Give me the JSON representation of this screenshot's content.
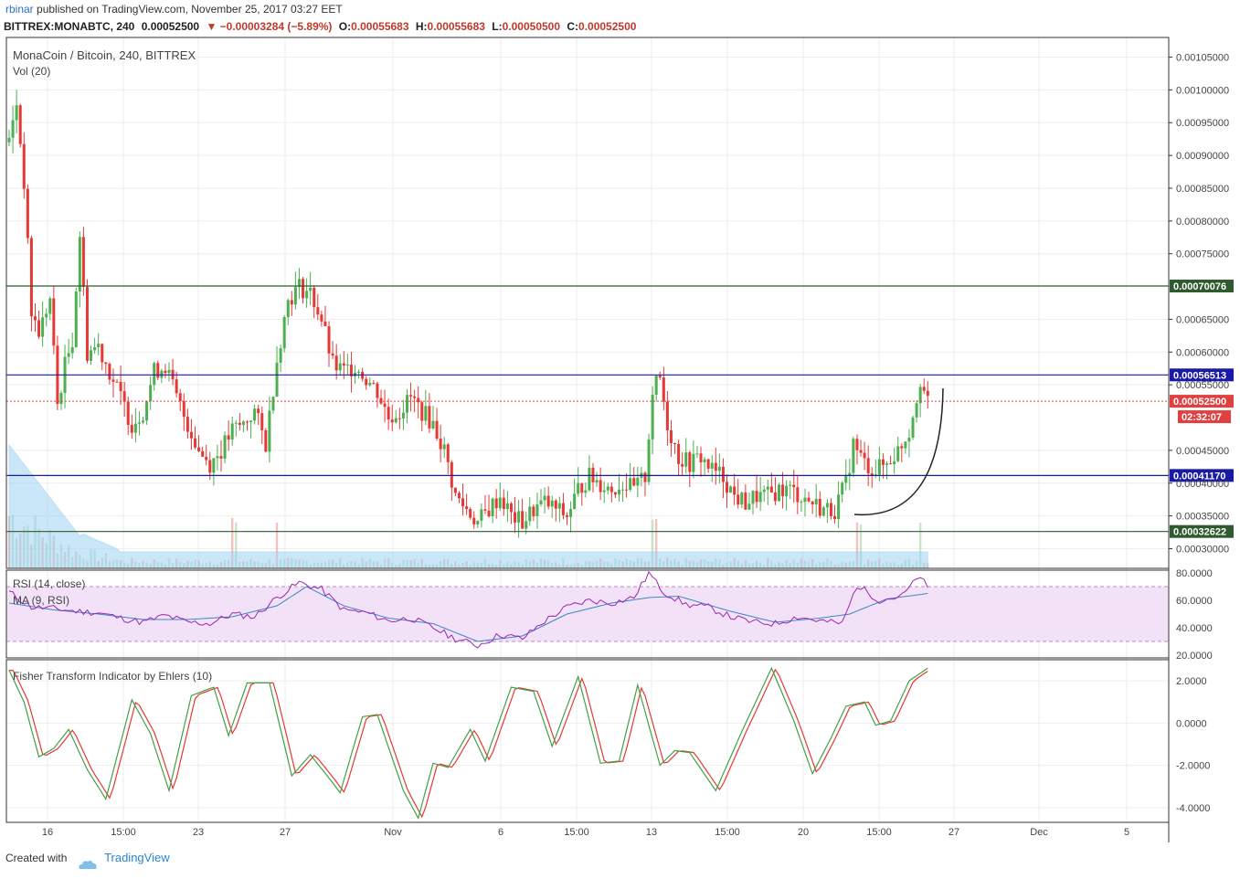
{
  "header": {
    "user": "rbinar",
    "published_text": "published on TradingView.com, November 25, 2017 03:27 EET",
    "symbol": "BITTREX:MONABTC, 240",
    "last": "0.00052500",
    "change": "▼ −0.00003284 (−5.89%)",
    "o_label": "O:",
    "o_value": "0.00055683",
    "h_label": "H:",
    "h_value": "0.00055683",
    "l_label": "L:",
    "l_value": "0.00050500",
    "c_label": "C:",
    "c_value": "0.00052500"
  },
  "main_pane": {
    "title": "MonaCoin / Bitcoin, 240, BITTREX",
    "vol_label": "Vol (20)"
  },
  "rsi_pane": {
    "title": "RSI (14, close)",
    "ma_label": "MA (9, RSI)"
  },
  "fisher_pane": {
    "title": "Fisher Transform Indicator by Ehlers (10)"
  },
  "footer": {
    "created": "Created with",
    "brand": "TradingView"
  },
  "colors": {
    "up": "#4caf50",
    "down": "#e53935",
    "blue_line": "#1a1aa8",
    "green_line": "#2e5a2e",
    "price_tag": "#e04040",
    "rsi_fill": "#f3e2f7",
    "rsi_line": "#9c27b0",
    "ma_line": "#3a87c8",
    "vol_area": "#9fd3f5"
  },
  "chart_data": {
    "type": "candlestick",
    "x_ticks": [
      "16",
      "15:00",
      "23",
      "27",
      "Nov",
      "6",
      "15:00",
      "13",
      "15:00",
      "20",
      "15:00",
      "27",
      "Dec",
      "5"
    ],
    "price_axis": {
      "ticks": [
        "0.00105000",
        "0.00100000",
        "0.00095000",
        "0.00090000",
        "0.00085000",
        "0.00080000",
        "0.00075000",
        "0.00065000",
        "0.00060000",
        "0.00055000",
        "0.00045000",
        "0.00040000",
        "0.00035000",
        "0.00030000"
      ],
      "range": [
        0.00027,
        0.00108
      ]
    },
    "levels": [
      {
        "value": 0.00070076,
        "label": "0.00070076",
        "color": "#2e5a2e"
      },
      {
        "value": 0.00056513,
        "label": "0.00056513",
        "color": "#1a1aa8"
      },
      {
        "value": 0.0004117,
        "label": "0.00041170",
        "color": "#1a1aa8"
      },
      {
        "value": 0.00032622,
        "label": "0.00032622",
        "color": "#2e5a2e"
      }
    ],
    "last_price": {
      "value": 0.000525,
      "label": "0.00052500",
      "countdown": "02:32:07"
    },
    "price_path": [
      [
        0,
        0.00092
      ],
      [
        2,
        0.00098
      ],
      [
        4,
        0.00086
      ],
      [
        6,
        0.00066
      ],
      [
        8,
        0.00063
      ],
      [
        11,
        0.00068
      ],
      [
        13,
        0.00052
      ],
      [
        15,
        0.00058
      ],
      [
        17,
        0.00062
      ],
      [
        19,
        0.00078
      ],
      [
        21,
        0.0006
      ],
      [
        24,
        0.00061
      ],
      [
        27,
        0.00057
      ],
      [
        30,
        0.00053
      ],
      [
        33,
        0.00049
      ],
      [
        36,
        0.00051
      ],
      [
        39,
        0.00057
      ],
      [
        42,
        0.00058
      ],
      [
        45,
        0.00053
      ],
      [
        48,
        0.00049
      ],
      [
        51,
        0.00045
      ],
      [
        54,
        0.00043
      ],
      [
        57,
        0.00045
      ],
      [
        60,
        0.00048
      ],
      [
        63,
        0.00049
      ],
      [
        66,
        0.00051
      ],
      [
        69,
        0.00046
      ],
      [
        72,
        0.00059
      ],
      [
        75,
        0.00068
      ],
      [
        78,
        0.0007
      ],
      [
        81,
        0.00069
      ],
      [
        84,
        0.00065
      ],
      [
        87,
        0.00058
      ],
      [
        90,
        0.00057
      ],
      [
        93,
        0.00058
      ],
      [
        96,
        0.00056
      ],
      [
        99,
        0.00054
      ],
      [
        102,
        0.0005
      ],
      [
        105,
        0.00051
      ],
      [
        108,
        0.00053
      ],
      [
        111,
        0.00051
      ],
      [
        114,
        0.00049
      ],
      [
        117,
        0.00045
      ],
      [
        120,
        0.00038
      ],
      [
        123,
        0.00036
      ],
      [
        126,
        0.00034
      ],
      [
        129,
        0.00036
      ],
      [
        132,
        0.00038
      ],
      [
        135,
        0.00035
      ],
      [
        138,
        0.00034
      ],
      [
        141,
        0.00036
      ],
      [
        144,
        0.00037
      ],
      [
        147,
        0.00036
      ],
      [
        150,
        0.00035
      ],
      [
        153,
        0.00039
      ],
      [
        156,
        0.00041
      ],
      [
        159,
        0.0004
      ],
      [
        162,
        0.00039
      ],
      [
        165,
        0.0004
      ],
      [
        168,
        0.00039
      ],
      [
        171,
        0.00041
      ],
      [
        173,
        0.00054
      ],
      [
        175,
        0.00056
      ],
      [
        177,
        0.00049
      ],
      [
        180,
        0.00044
      ],
      [
        183,
        0.00043
      ],
      [
        186,
        0.00044
      ],
      [
        189,
        0.00042
      ],
      [
        192,
        0.00041
      ],
      [
        195,
        0.00038
      ],
      [
        198,
        0.00037
      ],
      [
        201,
        0.00038
      ],
      [
        204,
        0.00038
      ],
      [
        207,
        0.00039
      ],
      [
        210,
        0.00039
      ],
      [
        213,
        0.00038
      ],
      [
        216,
        0.00037
      ],
      [
        219,
        0.00036
      ],
      [
        222,
        0.00036
      ],
      [
        225,
        0.0004
      ],
      [
        227,
        0.00046
      ],
      [
        230,
        0.00043
      ],
      [
        233,
        0.00042
      ],
      [
        236,
        0.00043
      ],
      [
        239,
        0.00045
      ],
      [
        242,
        0.00048
      ],
      [
        245,
        0.00056
      ],
      [
        247,
        0.00052
      ]
    ],
    "rsi": {
      "ticks": [
        "80.0000",
        "60.0000",
        "40.0000",
        "20.0000"
      ],
      "range": [
        18,
        82
      ],
      "band": [
        30,
        70
      ],
      "series_points": [
        [
          0,
          66
        ],
        [
          6,
          55
        ],
        [
          12,
          54
        ],
        [
          18,
          52
        ],
        [
          24,
          51
        ],
        [
          30,
          47
        ],
        [
          36,
          44
        ],
        [
          42,
          49
        ],
        [
          48,
          44
        ],
        [
          54,
          43
        ],
        [
          60,
          50
        ],
        [
          66,
          48
        ],
        [
          72,
          62
        ],
        [
          78,
          73
        ],
        [
          84,
          68
        ],
        [
          90,
          53
        ],
        [
          96,
          51
        ],
        [
          102,
          45
        ],
        [
          108,
          47
        ],
        [
          114,
          40
        ],
        [
          120,
          32
        ],
        [
          126,
          27
        ],
        [
          132,
          35
        ],
        [
          138,
          32
        ],
        [
          144,
          45
        ],
        [
          150,
          55
        ],
        [
          156,
          60
        ],
        [
          162,
          58
        ],
        [
          168,
          62
        ],
        [
          172,
          80
        ],
        [
          176,
          66
        ],
        [
          182,
          57
        ],
        [
          188,
          55
        ],
        [
          194,
          48
        ],
        [
          200,
          44
        ],
        [
          206,
          43
        ],
        [
          212,
          48
        ],
        [
          218,
          45
        ],
        [
          224,
          43
        ],
        [
          228,
          71
        ],
        [
          234,
          60
        ],
        [
          240,
          63
        ],
        [
          245,
          78
        ],
        [
          247,
          68
        ]
      ],
      "ma_points": [
        [
          0,
          58
        ],
        [
          12,
          53
        ],
        [
          24,
          50
        ],
        [
          36,
          46
        ],
        [
          48,
          46
        ],
        [
          60,
          48
        ],
        [
          72,
          56
        ],
        [
          80,
          70
        ],
        [
          90,
          56
        ],
        [
          102,
          47
        ],
        [
          114,
          43
        ],
        [
          126,
          30
        ],
        [
          138,
          34
        ],
        [
          150,
          50
        ],
        [
          162,
          58
        ],
        [
          172,
          62
        ],
        [
          180,
          63
        ],
        [
          194,
          52
        ],
        [
          206,
          44
        ],
        [
          218,
          47
        ],
        [
          226,
          50
        ],
        [
          236,
          61
        ],
        [
          247,
          65
        ]
      ]
    },
    "fisher": {
      "ticks": [
        "2.0000",
        "0.0000",
        "-2.0000",
        "-4.0000"
      ],
      "range": [
        -4.7,
        3.0
      ],
      "series_points": [
        [
          0,
          2.5
        ],
        [
          4,
          1.0
        ],
        [
          8,
          -1.6
        ],
        [
          12,
          -1.2
        ],
        [
          16,
          -0.3
        ],
        [
          21,
          -2.2
        ],
        [
          26,
          -3.6
        ],
        [
          33,
          1.1
        ],
        [
          38,
          -0.5
        ],
        [
          43,
          -3.2
        ],
        [
          49,
          1.3
        ],
        [
          55,
          1.7
        ],
        [
          59,
          -0.6
        ],
        [
          64,
          1.9
        ],
        [
          70,
          1.9
        ],
        [
          76,
          -2.5
        ],
        [
          81,
          -1.5
        ],
        [
          86,
          -2.6
        ],
        [
          89,
          -3.3
        ],
        [
          95,
          0.3
        ],
        [
          99,
          0.4
        ],
        [
          106,
          -3.2
        ],
        [
          110,
          -4.5
        ],
        [
          114,
          -1.9
        ],
        [
          118,
          -2.1
        ],
        [
          124,
          -0.3
        ],
        [
          128,
          -1.8
        ],
        [
          135,
          1.7
        ],
        [
          141,
          1.5
        ],
        [
          146,
          -1.1
        ],
        [
          153,
          2.2
        ],
        [
          159,
          -1.9
        ],
        [
          164,
          -1.8
        ],
        [
          169,
          1.8
        ],
        [
          175,
          -2.0
        ],
        [
          179,
          -1.3
        ],
        [
          183,
          -1.4
        ],
        [
          190,
          -3.2
        ],
        [
          197,
          -0.4
        ],
        [
          205,
          2.6
        ],
        [
          211,
          0.1
        ],
        [
          216,
          -2.4
        ],
        [
          221,
          -0.7
        ],
        [
          225,
          0.8
        ],
        [
          230,
          1.0
        ],
        [
          233,
          -0.1
        ],
        [
          237,
          0.1
        ],
        [
          242,
          2.0
        ],
        [
          247,
          2.6
        ]
      ]
    }
  }
}
